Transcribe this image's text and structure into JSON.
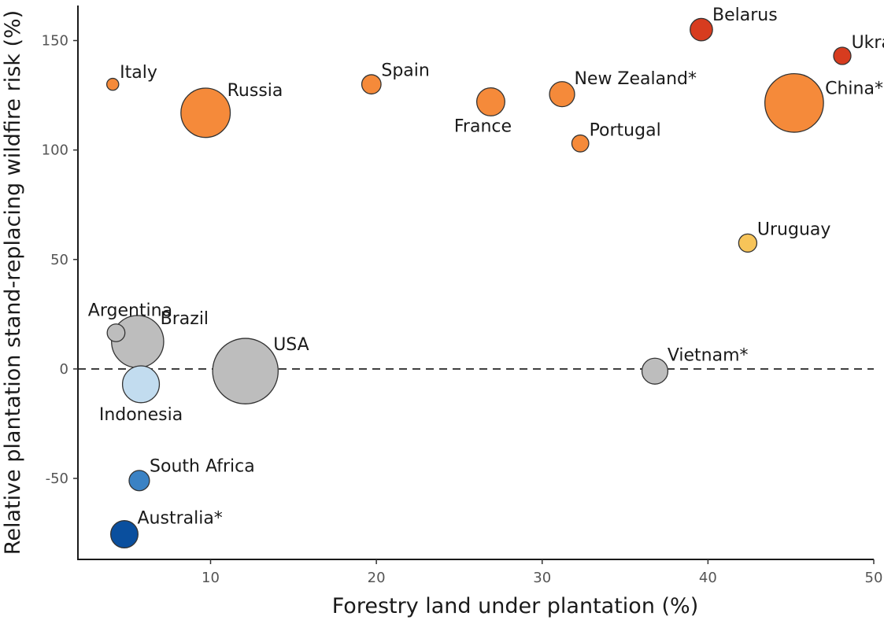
{
  "chart_data": {
    "type": "scatter",
    "title": "",
    "xlabel": "Forestry land under plantation (%)",
    "ylabel": "Relative plantation stand-replacing wildfire risk (%)",
    "xlim": [
      2,
      50
    ],
    "ylim": [
      -87,
      166
    ],
    "x_ticks": [
      10,
      20,
      30,
      40,
      50
    ],
    "y_ticks": [
      -50,
      0,
      50,
      100,
      150
    ],
    "grid": false,
    "reference_line": {
      "y": 0,
      "style": "dashed"
    },
    "size_encoding": "plantation area (relative, unlabeled)",
    "points": [
      {
        "label": "Italy",
        "x": 4.1,
        "y": 130,
        "size": 1.0,
        "color": "#f58a3a",
        "label_pos": "upper-right"
      },
      {
        "label": "Russia",
        "x": 9.7,
        "y": 117,
        "size": 17.0,
        "color": "#f58a3a",
        "label_pos": "upper-right"
      },
      {
        "label": "Spain",
        "x": 19.7,
        "y": 130,
        "size": 2.6,
        "color": "#f58a3a",
        "label_pos": "upper-right"
      },
      {
        "label": "France",
        "x": 26.9,
        "y": 122,
        "size": 5.5,
        "color": "#f58a3a",
        "label_pos": "below-left"
      },
      {
        "label": "New Zealand*",
        "x": 31.2,
        "y": 125.5,
        "size": 4.4,
        "color": "#f58a3a",
        "label_pos": "upper-right"
      },
      {
        "label": "Portugal",
        "x": 32.3,
        "y": 103,
        "size": 2.0,
        "color": "#f58a3a",
        "label_pos": "upper-right"
      },
      {
        "label": "Belarus",
        "x": 39.6,
        "y": 155,
        "size": 3.5,
        "color": "#d73c1f",
        "label_pos": "upper-right"
      },
      {
        "label": "Ukraine",
        "x": 48.1,
        "y": 143,
        "size": 2.1,
        "color": "#d73c1f",
        "label_pos": "upper-right"
      },
      {
        "label": "China*",
        "x": 45.2,
        "y": 121.5,
        "size": 24.0,
        "color": "#f58a3a",
        "label_pos": "right"
      },
      {
        "label": "Uruguay",
        "x": 42.4,
        "y": 57.5,
        "size": 2.3,
        "color": "#f7c459",
        "label_pos": "upper-right"
      },
      {
        "label": "Argentina",
        "x": 4.3,
        "y": 16.5,
        "size": 2.2,
        "color": "#bdbdbd",
        "label_pos": "above"
      },
      {
        "label": "Brazil",
        "x": 5.6,
        "y": 12.5,
        "size": 19.0,
        "color": "#bdbdbd",
        "label_pos": "upper-right"
      },
      {
        "label": "Indonesia",
        "x": 5.8,
        "y": -7,
        "size": 9.5,
        "color": "#c2dcef",
        "label_pos": "below"
      },
      {
        "label": "USA",
        "x": 12.1,
        "y": -1,
        "size": 30.0,
        "color": "#bdbdbd",
        "label_pos": "upper-right"
      },
      {
        "label": "Vietnam*",
        "x": 36.8,
        "y": -1,
        "size": 4.7,
        "color": "#bdbdbd",
        "label_pos": "upper-right"
      },
      {
        "label": "South Africa",
        "x": 5.7,
        "y": -51,
        "size": 2.9,
        "color": "#3b82c4",
        "label_pos": "upper-right"
      },
      {
        "label": "Australia*",
        "x": 4.8,
        "y": -75.5,
        "size": 5.2,
        "color": "#0a4f9e",
        "label_pos": "upper-right"
      }
    ]
  }
}
